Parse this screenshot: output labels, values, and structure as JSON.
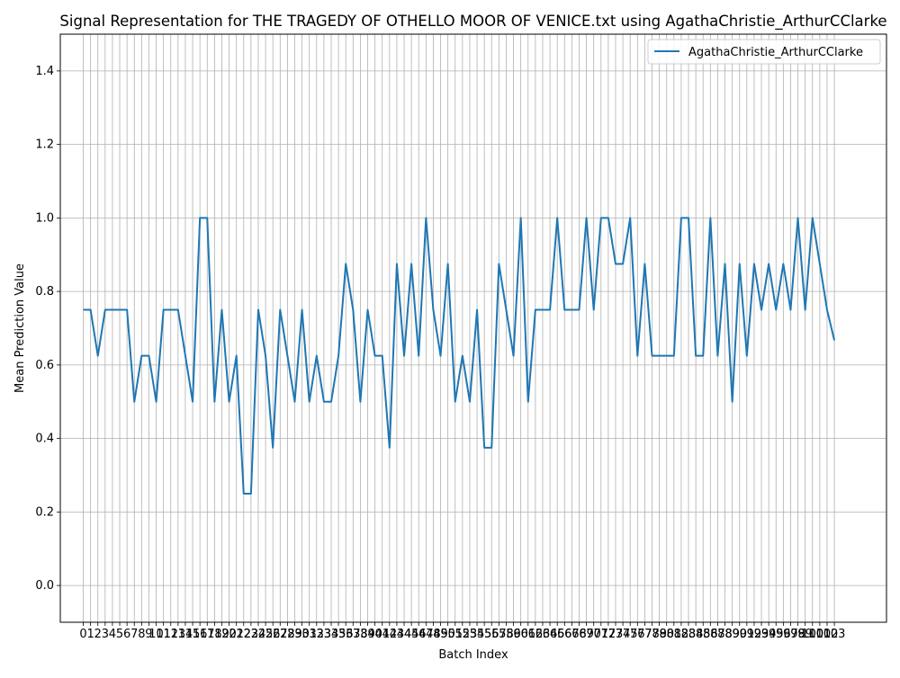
{
  "chart_data": {
    "type": "line",
    "title": "Signal Representation for THE TRAGEDY OF OTHELLO MOOR OF VENICE.txt using AgathaChristie_ArthurCClarke",
    "xlabel": "Batch Index",
    "ylabel": "Mean Prediction Value",
    "xlim": [
      -3.15,
      110.15
    ],
    "ylim": [
      -0.1,
      1.5
    ],
    "yticks": [
      0.0,
      0.2,
      0.4,
      0.6,
      0.8,
      1.0,
      1.2,
      1.4
    ],
    "grid": true,
    "legend": "top-right",
    "series": [
      {
        "name": "AgathaChristie_ArthurCClarke",
        "color": "#1f77b4",
        "x": [
          0,
          1,
          2,
          3,
          4,
          5,
          6,
          7,
          8,
          9,
          10,
          11,
          12,
          13,
          14,
          15,
          16,
          17,
          18,
          19,
          20,
          21,
          22,
          23,
          24,
          25,
          26,
          27,
          28,
          29,
          30,
          31,
          32,
          33,
          34,
          35,
          36,
          37,
          38,
          39,
          40,
          41,
          42,
          43,
          44,
          45,
          46,
          47,
          48,
          49,
          50,
          51,
          52,
          53,
          54,
          55,
          56,
          57,
          58,
          59,
          60,
          61,
          62,
          63,
          64,
          65,
          66,
          67,
          68,
          69,
          70,
          71,
          72,
          73,
          74,
          75,
          76,
          77,
          78,
          79,
          80,
          81,
          82,
          83,
          84,
          85,
          86,
          87,
          88,
          89,
          90,
          91,
          92,
          93,
          94,
          95,
          96,
          97,
          98,
          99,
          100,
          101,
          102,
          103
        ],
        "values": [
          0.75,
          0.75,
          0.625,
          0.75,
          0.75,
          0.75,
          0.75,
          0.5,
          0.625,
          0.625,
          0.5,
          0.75,
          0.75,
          0.75,
          0.625,
          0.5,
          1.0,
          1.0,
          0.5,
          0.75,
          0.5,
          0.625,
          0.25,
          0.25,
          0.75,
          0.625,
          0.375,
          0.75,
          0.625,
          0.5,
          0.75,
          0.5,
          0.625,
          0.5,
          0.5,
          0.625,
          0.875,
          0.75,
          0.5,
          0.75,
          0.625,
          0.625,
          0.375,
          0.875,
          0.625,
          0.875,
          0.625,
          1.0,
          0.75,
          0.625,
          0.875,
          0.5,
          0.625,
          0.5,
          0.75,
          0.375,
          0.375,
          0.875,
          0.75,
          0.625,
          1.0,
          0.5,
          0.75,
          0.75,
          0.75,
          1.0,
          0.75,
          0.75,
          0.75,
          1.0,
          0.75,
          1.0,
          1.0,
          0.875,
          0.875,
          1.0,
          0.625,
          0.875,
          0.625,
          0.625,
          0.625,
          0.625,
          1.0,
          1.0,
          0.625,
          0.625,
          1.0,
          0.625,
          0.875,
          0.5,
          0.875,
          0.625,
          0.875,
          0.75,
          0.875,
          0.75,
          0.875,
          0.75,
          1.0,
          0.75,
          1.0,
          0.875,
          0.75,
          0.667
        ]
      }
    ]
  }
}
